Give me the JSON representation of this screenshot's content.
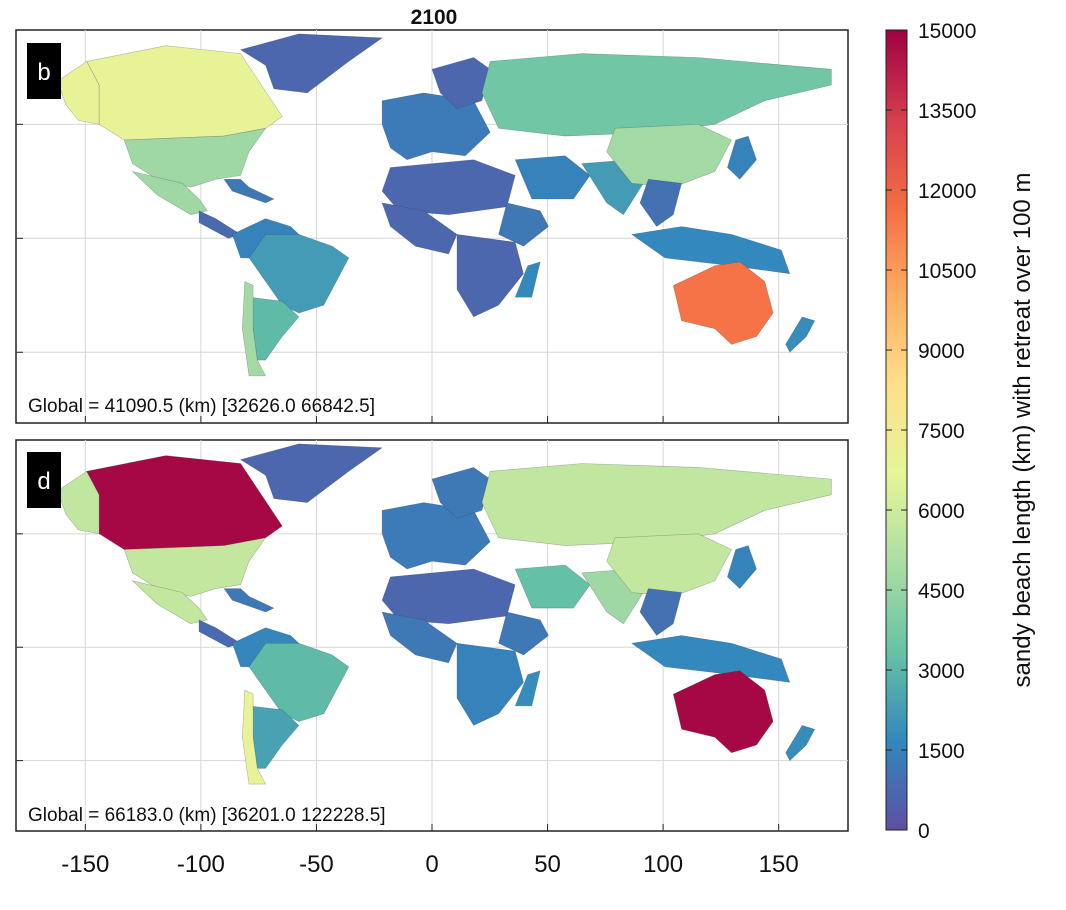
{
  "figure": {
    "title": "2100",
    "xticks": [
      "-150",
      "-100",
      "-50",
      "0",
      "50",
      "100",
      "150"
    ],
    "colorbar": {
      "label": "sandy beach length (km) with retreat over 100 m",
      "ticks": [
        "15000",
        "13500",
        "12000",
        "10500",
        "9000",
        "7500",
        "6000",
        "4500",
        "3000",
        "1500",
        "0"
      ],
      "min": 0,
      "max": 15000,
      "colors": [
        "#5e4fa2",
        "#3288bd",
        "#66c2a5",
        "#abdda4",
        "#e6f598",
        "#fee08b",
        "#fdae61",
        "#f46d43",
        "#d53e4f",
        "#9e0142"
      ]
    },
    "panels": [
      {
        "letter": "b",
        "global_text": "Global = 41090.5 (km) [32626.0 66842.5]",
        "regions": {
          "canada": 6800,
          "alaska": 6800,
          "greenland": 700,
          "usa": 4700,
          "mexico": 4700,
          "central_america": 800,
          "caribbean": 1200,
          "northern_south_america": 1500,
          "brazil": 2200,
          "argentina": 3100,
          "chile": 4800,
          "europe": 1300,
          "scandinavia": 700,
          "russia": 3600,
          "africa_north": 700,
          "africa_west": 700,
          "africa_south": 700,
          "east_africa": 1200,
          "madagascar": 1700,
          "middle_east": 1500,
          "india": 2200,
          "china": 4800,
          "se_asia": 1000,
          "indonesia": 1700,
          "australia": 11500,
          "new_zealand": 1800,
          "japan": 1500
        }
      },
      {
        "letter": "d",
        "global_text": "Global = 66183.0 (km) [36201.0 122228.5]",
        "regions": {
          "canada": 14800,
          "alaska": 5600,
          "greenland": 700,
          "usa": 5700,
          "mexico": 5700,
          "central_america": 800,
          "caribbean": 1200,
          "northern_south_america": 1600,
          "brazil": 3100,
          "argentina": 2400,
          "chile": 6800,
          "europe": 1300,
          "scandinavia": 1200,
          "russia": 5600,
          "africa_north": 700,
          "africa_west": 1200,
          "africa_south": 1500,
          "east_africa": 1200,
          "madagascar": 1800,
          "middle_east": 3300,
          "india": 4700,
          "china": 5700,
          "se_asia": 1000,
          "indonesia": 1700,
          "australia": 14800,
          "new_zealand": 1800,
          "japan": 1500
        }
      }
    ]
  }
}
